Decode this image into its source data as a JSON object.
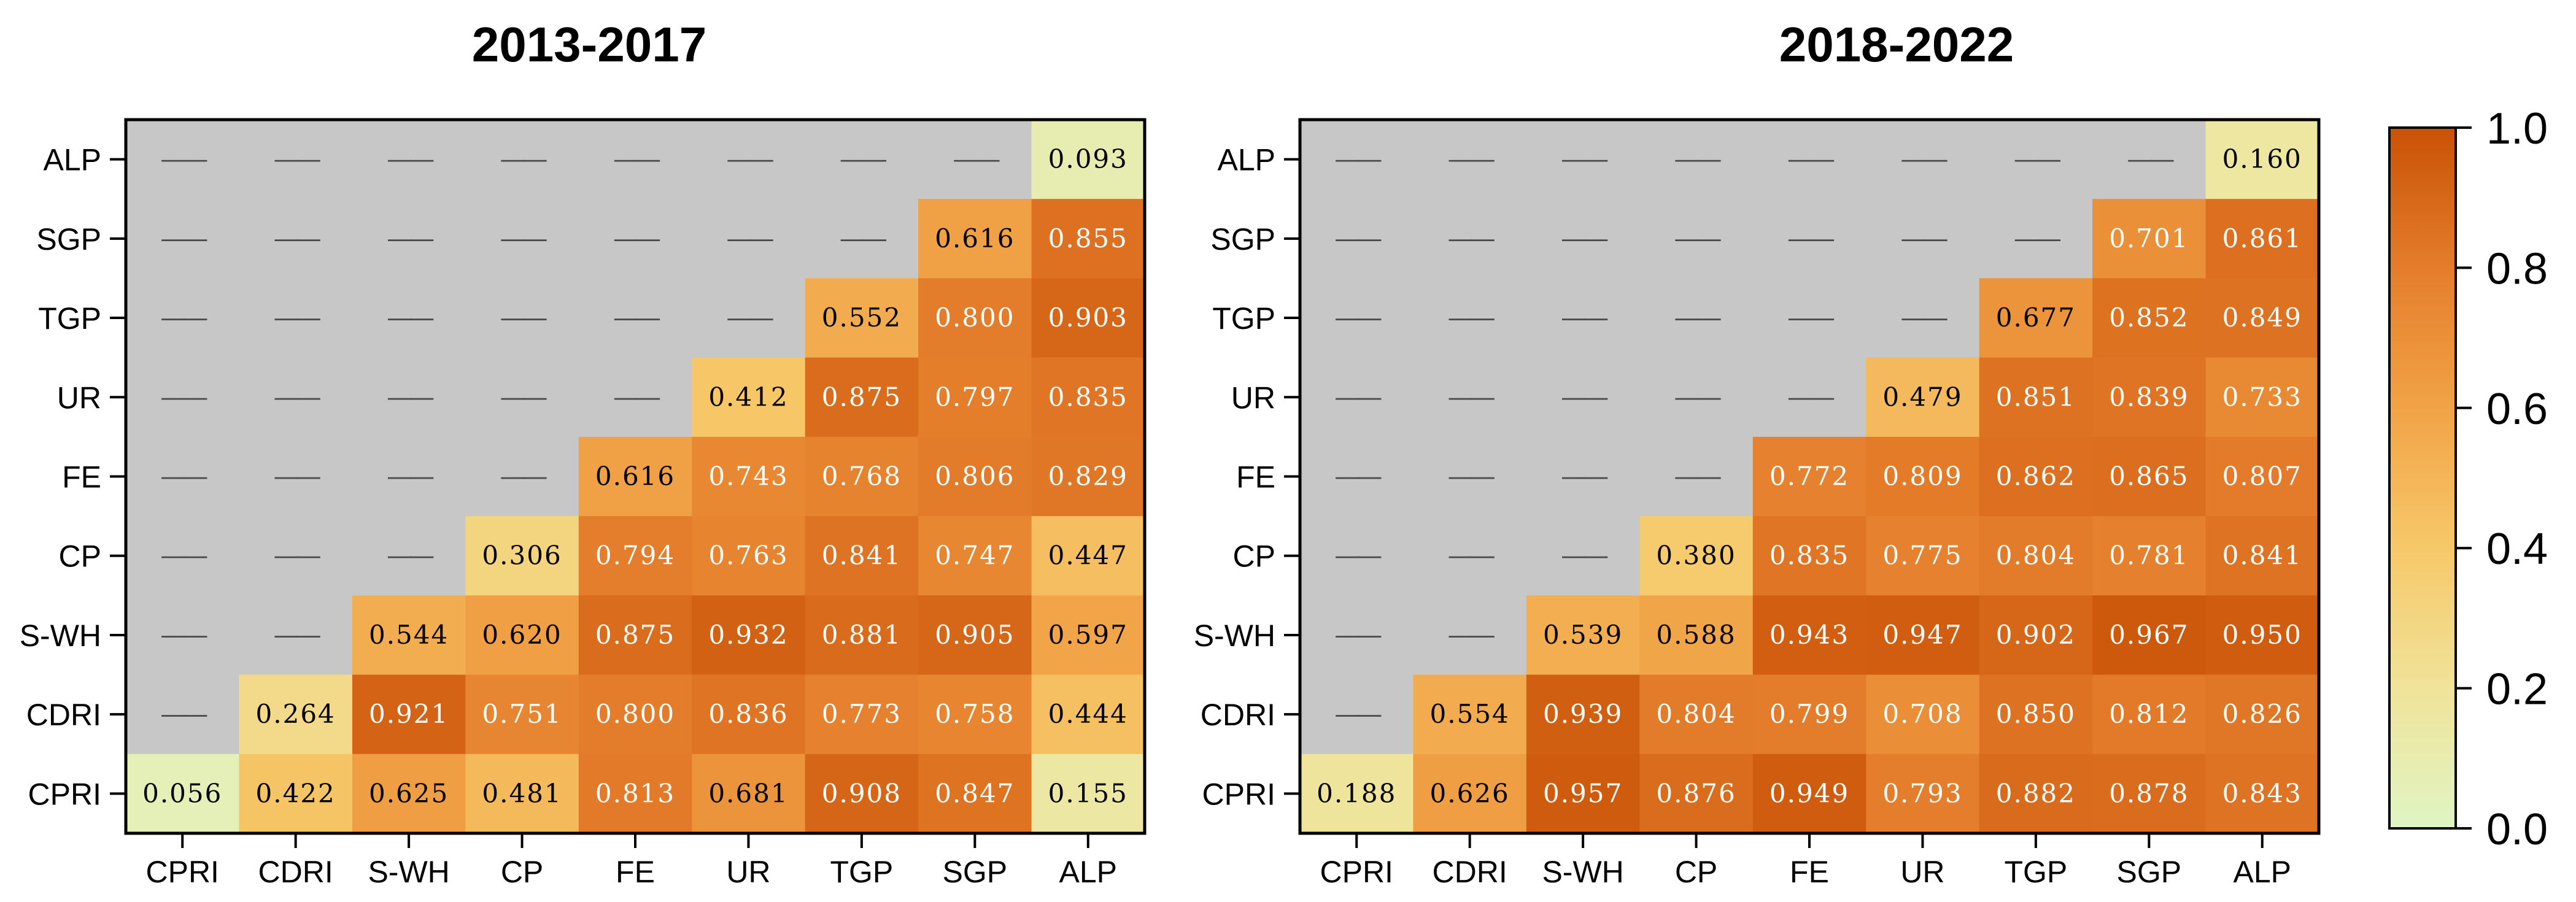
{
  "chart_data": [
    {
      "type": "heatmap",
      "title": "2013-2017",
      "x_categories": [
        "CPRI",
        "CDRI",
        "S-WH",
        "CP",
        "FE",
        "UR",
        "TGP",
        "SGP",
        "ALP"
      ],
      "y_categories": [
        "CPRI",
        "CDRI",
        "S-WH",
        "CP",
        "FE",
        "UR",
        "TGP",
        "SGP",
        "ALP"
      ],
      "missing_label": "——",
      "rows": [
        {
          "y": "ALP",
          "values": [
            null,
            null,
            null,
            null,
            null,
            null,
            null,
            null,
            0.093
          ],
          "labels": [
            "——",
            "——",
            "——",
            "——",
            "——",
            "——",
            "——",
            "——",
            "0.093"
          ]
        },
        {
          "y": "SGP",
          "values": [
            null,
            null,
            null,
            null,
            null,
            null,
            null,
            0.616,
            0.855
          ],
          "labels": [
            "——",
            "——",
            "——",
            "——",
            "——",
            "——",
            "——",
            "0.616",
            "0.855"
          ]
        },
        {
          "y": "TGP",
          "values": [
            null,
            null,
            null,
            null,
            null,
            null,
            0.552,
            0.8,
            0.903
          ],
          "labels": [
            "——",
            "——",
            "——",
            "——",
            "——",
            "——",
            "0.552",
            "0.800",
            "0.903"
          ]
        },
        {
          "y": "UR",
          "values": [
            null,
            null,
            null,
            null,
            null,
            0.412,
            0.875,
            0.797,
            0.835
          ],
          "labels": [
            "——",
            "——",
            "——",
            "——",
            "——",
            "0.412",
            "0.875",
            "0.797",
            "0.835"
          ]
        },
        {
          "y": "FE",
          "values": [
            null,
            null,
            null,
            null,
            0.616,
            0.743,
            0.768,
            0.806,
            0.829
          ],
          "labels": [
            "——",
            "——",
            "——",
            "——",
            "0.616",
            "0.743",
            "0.768",
            "0.806",
            "0.829"
          ]
        },
        {
          "y": "CP",
          "values": [
            null,
            null,
            null,
            0.306,
            0.794,
            0.763,
            0.841,
            0.747,
            0.447
          ],
          "labels": [
            "——",
            "——",
            "——",
            "0.306",
            "0.794",
            "0.763",
            "0.841",
            "0.747",
            "0.447"
          ]
        },
        {
          "y": "S-WH",
          "values": [
            null,
            null,
            0.544,
            0.62,
            0.875,
            0.932,
            0.881,
            0.905,
            0.597
          ],
          "labels": [
            "——",
            "——",
            "0.544",
            "0.620",
            "0.875",
            "0.932",
            "0.881",
            "0.905",
            "0.597"
          ]
        },
        {
          "y": "CDRI",
          "values": [
            null,
            0.264,
            0.921,
            0.751,
            0.8,
            0.836,
            0.773,
            0.758,
            0.444
          ],
          "labels": [
            "——",
            "0.264",
            "0.921",
            "0.751",
            "0.800",
            "0.836",
            "0.773",
            "0.758",
            "0.444"
          ]
        },
        {
          "y": "CPRI",
          "values": [
            0.056,
            0.422,
            0.625,
            0.481,
            0.813,
            0.681,
            0.908,
            0.847,
            0.155
          ],
          "labels": [
            "0.056",
            "0.422",
            "0.625",
            "0.481",
            "0.813",
            "0.681",
            "0.908",
            "0.847",
            "0.155"
          ]
        }
      ]
    },
    {
      "type": "heatmap",
      "title": "2018-2022",
      "x_categories": [
        "CPRI",
        "CDRI",
        "S-WH",
        "CP",
        "FE",
        "UR",
        "TGP",
        "SGP",
        "ALP"
      ],
      "y_categories": [
        "CPRI",
        "CDRI",
        "S-WH",
        "CP",
        "FE",
        "UR",
        "TGP",
        "SGP",
        "ALP"
      ],
      "missing_label": "——",
      "rows": [
        {
          "y": "ALP",
          "values": [
            null,
            null,
            null,
            null,
            null,
            null,
            null,
            null,
            0.16
          ],
          "labels": [
            "——",
            "——",
            "——",
            "——",
            "——",
            "——",
            "——",
            "——",
            "0.160"
          ]
        },
        {
          "y": "SGP",
          "values": [
            null,
            null,
            null,
            null,
            null,
            null,
            null,
            0.701,
            0.861
          ],
          "labels": [
            "——",
            "——",
            "——",
            "——",
            "——",
            "——",
            "——",
            "0.701",
            "0.861"
          ]
        },
        {
          "y": "TGP",
          "values": [
            null,
            null,
            null,
            null,
            null,
            null,
            0.677,
            0.852,
            0.849
          ],
          "labels": [
            "——",
            "——",
            "——",
            "——",
            "——",
            "——",
            "0.677",
            "0.852",
            "0.849"
          ]
        },
        {
          "y": "UR",
          "values": [
            null,
            null,
            null,
            null,
            null,
            0.479,
            0.851,
            0.839,
            0.733
          ],
          "labels": [
            "——",
            "——",
            "——",
            "——",
            "——",
            "0.479",
            "0.851",
            "0.839",
            "0.733"
          ]
        },
        {
          "y": "FE",
          "values": [
            null,
            null,
            null,
            null,
            0.772,
            0.809,
            0.862,
            0.865,
            0.807
          ],
          "labels": [
            "——",
            "——",
            "——",
            "——",
            "0.772",
            "0.809",
            "0.862",
            "0.865",
            "0.807"
          ]
        },
        {
          "y": "CP",
          "values": [
            null,
            null,
            null,
            0.38,
            0.835,
            0.775,
            0.804,
            0.781,
            0.841
          ],
          "labels": [
            "——",
            "——",
            "——",
            "0.380",
            "0.835",
            "0.775",
            "0.804",
            "0.781",
            "0.841"
          ]
        },
        {
          "y": "S-WH",
          "values": [
            null,
            null,
            0.539,
            0.588,
            0.943,
            0.947,
            0.902,
            0.967,
            0.95
          ],
          "labels": [
            "——",
            "——",
            "0.539",
            "0.588",
            "0.943",
            "0.947",
            "0.902",
            "0.967",
            "0.950"
          ]
        },
        {
          "y": "CDRI",
          "values": [
            null,
            0.554,
            0.939,
            0.804,
            0.799,
            0.708,
            0.85,
            0.812,
            0.826
          ],
          "labels": [
            "——",
            "0.554",
            "0.939",
            "0.804",
            "0.799",
            "0.708",
            "0.850",
            "0.812",
            "0.826"
          ]
        },
        {
          "y": "CPRI",
          "values": [
            0.188,
            0.626,
            0.957,
            0.876,
            0.949,
            0.793,
            0.882,
            0.878,
            0.843
          ],
          "labels": [
            "0.188",
            "0.626",
            "0.957",
            "0.876",
            "0.949",
            "0.793",
            "0.882",
            "0.878",
            "0.843"
          ]
        }
      ]
    }
  ],
  "colorbar": {
    "range": [
      0.0,
      1.0
    ],
    "tick_values": [
      0.0,
      0.2,
      0.4,
      0.6,
      0.8,
      1.0
    ],
    "tick_labels": [
      "0.0",
      "0.2",
      "0.4",
      "0.6",
      "0.8",
      "1.0"
    ],
    "colors": [
      "#dff5c3",
      "#f0e39a",
      "#f6c869",
      "#f1a347",
      "#e47d2b",
      "#c95206"
    ]
  },
  "missing_color": "#c7c7c7",
  "missing_text_color": "#4a4a4a"
}
